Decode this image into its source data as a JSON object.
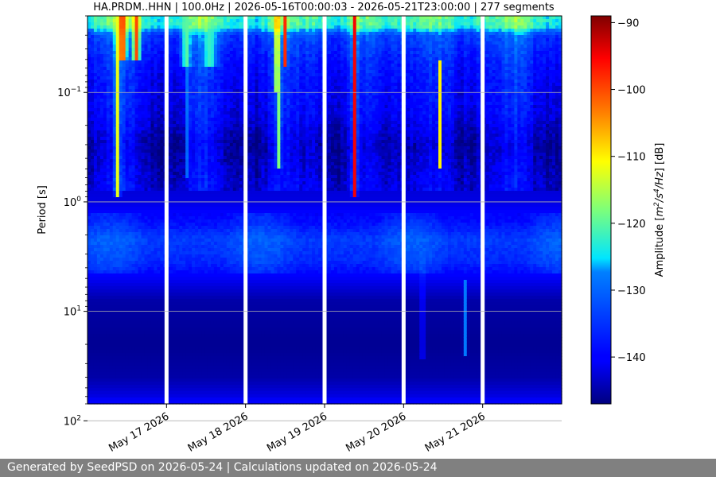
{
  "chart_data": {
    "type": "heatmap",
    "title": "HA.PRDM..HHN | 100.0Hz | 2026-05-16T00:00:03 - 2026-05-21T23:00:00 | 277 segments",
    "ylabel": "Period [s]",
    "y_scale": "log",
    "y_reversed": true,
    "ylim": [
      0.02,
      70
    ],
    "y_ticks": [
      {
        "value": 0.1,
        "base": "10",
        "exp": "−1"
      },
      {
        "value": 1,
        "base": "10",
        "exp": "0"
      },
      {
        "value": 10,
        "base": "10",
        "exp": "1"
      },
      {
        "value": 100,
        "base": "10",
        "exp": "2"
      }
    ],
    "x_ticks": [
      "May 17 2026",
      "May 18 2026",
      "May 19 2026",
      "May 20 2026",
      "May 21 2026"
    ],
    "x_range_days": [
      0,
      6
    ],
    "gaps_days": [
      1.0,
      2.0,
      3.0,
      4.0,
      5.0
    ],
    "grid": "horizontal",
    "colorbar": {
      "label_prefix": "Amplitude [",
      "label_math": "m",
      "label_sup1": "2",
      "label_mid": "/s",
      "label_sup2": "4",
      "label_slash": "/",
      "label_hz": "Hz",
      "label_suffix": "] [dB]",
      "vmin": -147,
      "vmax": -89,
      "ticks": [
        -90,
        -100,
        -110,
        -120,
        -130,
        -140
      ],
      "tick_labels": [
        "−90",
        "−100",
        "−110",
        "−120",
        "−130",
        "−140"
      ],
      "colormap": "jet"
    },
    "period_profile": [
      {
        "period": 0.02,
        "db": -122
      },
      {
        "period": 0.025,
        "db": -123
      },
      {
        "period": 0.03,
        "db": -134
      },
      {
        "period": 0.05,
        "db": -138
      },
      {
        "period": 0.08,
        "db": -140
      },
      {
        "period": 0.15,
        "db": -141
      },
      {
        "period": 0.3,
        "db": -145
      },
      {
        "period": 0.6,
        "db": -143
      },
      {
        "period": 1.0,
        "db": -142
      },
      {
        "period": 1.5,
        "db": -139
      },
      {
        "period": 2.2,
        "db": -134
      },
      {
        "period": 3.5,
        "db": -136
      },
      {
        "period": 5.0,
        "db": -141
      },
      {
        "period": 8.0,
        "db": -145
      },
      {
        "period": 20,
        "db": -146
      },
      {
        "period": 40,
        "db": -145
      },
      {
        "period": 60,
        "db": -142
      },
      {
        "period": 80,
        "db": -137
      },
      {
        "period": 100,
        "db": -132
      },
      {
        "period": 150,
        "db": -127
      },
      {
        "period": 200,
        "db": -119
      },
      {
        "period": 250,
        "db": -111
      },
      {
        "period": 330,
        "db": -104
      },
      {
        "period": 400,
        "db": -98
      },
      {
        "period": 500,
        "db": -89
      }
    ],
    "events": [
      {
        "day": 0.44,
        "db": -98,
        "width": 0.05,
        "min_period": 0.02,
        "max_period": 0.05
      },
      {
        "day": 0.62,
        "db": -100,
        "width": 0.04,
        "min_period": 0.02,
        "max_period": 0.05
      },
      {
        "day": 0.38,
        "db": -112,
        "width": 0.03,
        "min_period": 0.02,
        "max_period": 0.9
      },
      {
        "day": 1.25,
        "db": -120,
        "width": 0.06,
        "min_period": 0.02,
        "max_period": 0.06
      },
      {
        "day": 1.55,
        "db": -122,
        "width": 0.08,
        "min_period": 0.02,
        "max_period": 0.06
      },
      {
        "day": 1.27,
        "db": -126,
        "width": 0.02,
        "min_period": 0.02,
        "max_period": 0.6
      },
      {
        "day": 2.4,
        "db": -100,
        "width": 0.025,
        "min_period": 0.02,
        "max_period": 0.1
      },
      {
        "day": 2.5,
        "db": -98,
        "width": 0.02,
        "min_period": 0.02,
        "max_period": 0.06
      },
      {
        "day": 2.42,
        "db": -118,
        "width": 0.03,
        "min_period": 0.02,
        "max_period": 0.5
      },
      {
        "day": 3.38,
        "db": -95,
        "width": 0.025,
        "min_period": 0.02,
        "max_period": 0.9
      },
      {
        "day": 4.24,
        "db": -124,
        "width": 0.015,
        "min_period": 3.0,
        "max_period": 28
      },
      {
        "day": 4.46,
        "db": -110,
        "width": 0.02,
        "min_period": 0.05,
        "max_period": 0.5
      },
      {
        "day": 4.78,
        "db": -128,
        "width": 0.02,
        "min_period": 5.0,
        "max_period": 25
      }
    ]
  },
  "footer": {
    "text": "Generated by SeedPSD on 2026-05-24 | Calculations updated on 2026-05-24"
  }
}
